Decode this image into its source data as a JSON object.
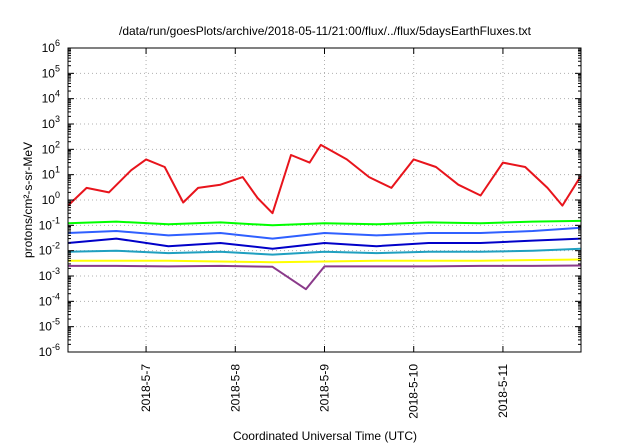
{
  "chart_data": {
    "type": "line",
    "title": "/data/run/goesPlots/archive/2018-05-11/21:00/flux/../flux/5daysEarthFluxes.txt",
    "xlabel": "Coordinated Universal Time (UTC)",
    "ylabel": "protons/cm²-s-sr-MeV",
    "y_scale": "log",
    "ylim": [
      1e-06,
      1000000.0
    ],
    "y_ticks": [
      {
        "base": "10",
        "exp": "-6",
        "value": 1e-06
      },
      {
        "base": "10",
        "exp": "-5",
        "value": 1e-05
      },
      {
        "base": "10",
        "exp": "-4",
        "value": 0.0001
      },
      {
        "base": "10",
        "exp": "-3",
        "value": 0.001
      },
      {
        "base": "10",
        "exp": "-2",
        "value": 0.01
      },
      {
        "base": "10",
        "exp": "-1",
        "value": 0.1
      },
      {
        "base": "10",
        "exp": "0",
        "value": 1
      },
      {
        "base": "10",
        "exp": "1",
        "value": 10
      },
      {
        "base": "10",
        "exp": "2",
        "value": 100
      },
      {
        "base": "10",
        "exp": "3",
        "value": 1000
      },
      {
        "base": "10",
        "exp": "4",
        "value": 10000
      },
      {
        "base": "10",
        "exp": "5",
        "value": 100000
      },
      {
        "base": "10",
        "exp": "6",
        "value": 1000000
      }
    ],
    "xlim": [
      "2018-05-06 03:00",
      "2018-05-11 21:00"
    ],
    "x_ticks": [
      "2018-5-7",
      "2018-5-8",
      "2018-5-9",
      "2018-5-10",
      "2018-5-11"
    ],
    "grid": true,
    "series": [
      {
        "color": "#e8141c",
        "x": [
          "2018-05-06 03:00",
          "2018-05-06 08:00",
          "2018-05-06 14:00",
          "2018-05-06 20:00",
          "2018-05-07 00:00",
          "2018-05-07 05:00",
          "2018-05-07 10:00",
          "2018-05-07 14:00",
          "2018-05-07 20:00",
          "2018-05-08 02:00",
          "2018-05-08 06:00",
          "2018-05-08 10:00",
          "2018-05-08 15:00",
          "2018-05-08 20:00",
          "2018-05-08 23:00",
          "2018-05-09 06:00",
          "2018-05-09 12:00",
          "2018-05-09 18:00",
          "2018-05-10 00:00",
          "2018-05-10 06:00",
          "2018-05-10 12:00",
          "2018-05-10 18:00",
          "2018-05-11 00:00",
          "2018-05-11 06:00",
          "2018-05-11 12:00",
          "2018-05-11 16:00",
          "2018-05-11 21:00"
        ],
        "values": [
          0.6,
          3,
          2,
          15,
          40,
          20,
          0.8,
          3,
          4,
          8,
          1.2,
          0.3,
          60,
          30,
          150,
          40,
          8,
          3,
          40,
          20,
          4,
          1.5,
          30,
          20,
          3,
          0.6,
          9
        ]
      },
      {
        "color": "#00ff00",
        "x": [
          "2018-05-06 03:00",
          "2018-05-06 16:00",
          "2018-05-07 06:00",
          "2018-05-07 20:00",
          "2018-05-08 10:00",
          "2018-05-09 00:00",
          "2018-05-09 14:00",
          "2018-05-10 04:00",
          "2018-05-10 18:00",
          "2018-05-11 08:00",
          "2018-05-11 21:00"
        ],
        "values": [
          0.12,
          0.14,
          0.11,
          0.13,
          0.1,
          0.12,
          0.11,
          0.13,
          0.12,
          0.14,
          0.15
        ]
      },
      {
        "color": "#3060ff",
        "x": [
          "2018-05-06 03:00",
          "2018-05-06 16:00",
          "2018-05-07 06:00",
          "2018-05-07 20:00",
          "2018-05-08 10:00",
          "2018-05-09 00:00",
          "2018-05-09 14:00",
          "2018-05-10 04:00",
          "2018-05-10 18:00",
          "2018-05-11 08:00",
          "2018-05-11 21:00"
        ],
        "values": [
          0.05,
          0.06,
          0.04,
          0.05,
          0.03,
          0.05,
          0.04,
          0.05,
          0.05,
          0.06,
          0.08
        ]
      },
      {
        "color": "#0000c8",
        "x": [
          "2018-05-06 03:00",
          "2018-05-06 16:00",
          "2018-05-07 06:00",
          "2018-05-07 20:00",
          "2018-05-08 10:00",
          "2018-05-09 00:00",
          "2018-05-09 14:00",
          "2018-05-10 04:00",
          "2018-05-10 18:00",
          "2018-05-11 08:00",
          "2018-05-11 21:00"
        ],
        "values": [
          0.02,
          0.03,
          0.015,
          0.02,
          0.012,
          0.02,
          0.015,
          0.02,
          0.02,
          0.025,
          0.03
        ]
      },
      {
        "color": "#20a0c0",
        "x": [
          "2018-05-06 03:00",
          "2018-05-06 16:00",
          "2018-05-07 06:00",
          "2018-05-07 20:00",
          "2018-05-08 10:00",
          "2018-05-09 00:00",
          "2018-05-09 14:00",
          "2018-05-10 04:00",
          "2018-05-10 18:00",
          "2018-05-11 08:00",
          "2018-05-11 21:00"
        ],
        "values": [
          0.009,
          0.01,
          0.008,
          0.009,
          0.007,
          0.009,
          0.008,
          0.009,
          0.009,
          0.01,
          0.012
        ]
      },
      {
        "color": "#ffff00",
        "x": [
          "2018-05-06 03:00",
          "2018-05-07 06:00",
          "2018-05-08 10:00",
          "2018-05-09 14:00",
          "2018-05-10 18:00",
          "2018-05-11 21:00"
        ],
        "values": [
          0.004,
          0.004,
          0.0035,
          0.004,
          0.004,
          0.0045
        ]
      },
      {
        "color": "#8a3a8a",
        "x": [
          "2018-05-06 03:00",
          "2018-05-06 16:00",
          "2018-05-07 06:00",
          "2018-05-07 20:00",
          "2018-05-08 10:00",
          "2018-05-08 19:00",
          "2018-05-09 00:00",
          "2018-05-09 14:00",
          "2018-05-10 04:00",
          "2018-05-10 18:00",
          "2018-05-11 08:00",
          "2018-05-11 21:00"
        ],
        "values": [
          0.0025,
          0.0025,
          0.0024,
          0.0025,
          0.0023,
          0.0003,
          0.0024,
          0.0024,
          0.0024,
          0.0025,
          0.0025,
          0.0026
        ]
      }
    ]
  }
}
